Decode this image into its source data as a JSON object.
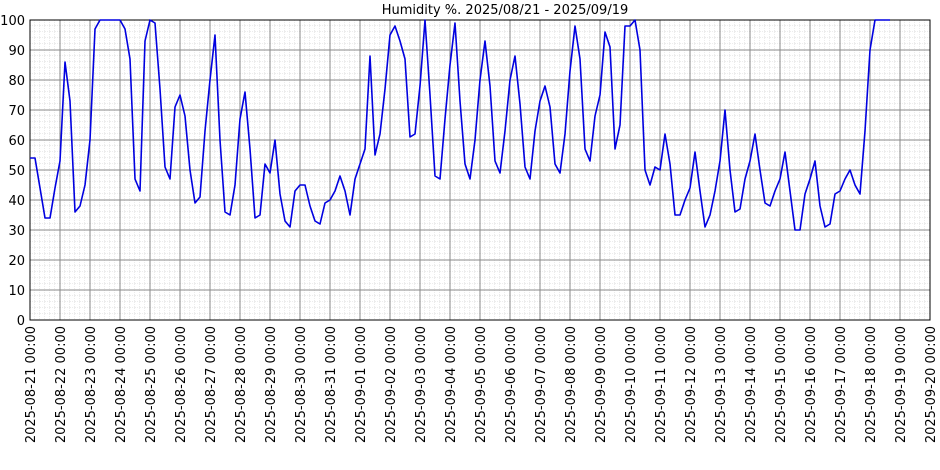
{
  "chart_data": {
    "type": "line",
    "title": "Humidity %. 2025/08/21 - 2025/09/19",
    "x": [
      "2025-08-21 00:00",
      "2025-08-21 04:00",
      "2025-08-21 08:00",
      "2025-08-21 12:00",
      "2025-08-21 16:00",
      "2025-08-21 20:00",
      "2025-08-22 00:00",
      "2025-08-22 04:00",
      "2025-08-22 08:00",
      "2025-08-22 12:00",
      "2025-08-22 16:00",
      "2025-08-22 20:00",
      "2025-08-23 00:00",
      "2025-08-23 04:00",
      "2025-08-23 08:00",
      "2025-08-23 12:00",
      "2025-08-23 16:00",
      "2025-08-23 20:00",
      "2025-08-24 00:00",
      "2025-08-24 04:00",
      "2025-08-24 08:00",
      "2025-08-24 12:00",
      "2025-08-24 16:00",
      "2025-08-24 20:00",
      "2025-08-25 00:00",
      "2025-08-25 04:00",
      "2025-08-25 08:00",
      "2025-08-25 12:00",
      "2025-08-25 16:00",
      "2025-08-25 20:00",
      "2025-08-26 00:00",
      "2025-08-26 04:00",
      "2025-08-26 08:00",
      "2025-08-26 12:00",
      "2025-08-26 16:00",
      "2025-08-26 20:00",
      "2025-08-27 00:00",
      "2025-08-27 04:00",
      "2025-08-27 08:00",
      "2025-08-27 12:00",
      "2025-08-27 16:00",
      "2025-08-27 20:00",
      "2025-08-28 00:00",
      "2025-08-28 04:00",
      "2025-08-28 08:00",
      "2025-08-28 12:00",
      "2025-08-28 16:00",
      "2025-08-28 20:00",
      "2025-08-29 00:00",
      "2025-08-29 04:00",
      "2025-08-29 08:00",
      "2025-08-29 12:00",
      "2025-08-29 16:00",
      "2025-08-29 20:00",
      "2025-08-30 00:00",
      "2025-08-30 04:00",
      "2025-08-30 08:00",
      "2025-08-30 12:00",
      "2025-08-30 16:00",
      "2025-08-30 20:00",
      "2025-08-31 00:00",
      "2025-08-31 04:00",
      "2025-08-31 08:00",
      "2025-08-31 12:00",
      "2025-08-31 16:00",
      "2025-08-31 20:00",
      "2025-09-01 00:00",
      "2025-09-01 04:00",
      "2025-09-01 08:00",
      "2025-09-01 12:00",
      "2025-09-01 16:00",
      "2025-09-01 20:00",
      "2025-09-02 00:00",
      "2025-09-02 04:00",
      "2025-09-02 08:00",
      "2025-09-02 12:00",
      "2025-09-02 16:00",
      "2025-09-02 20:00",
      "2025-09-03 00:00",
      "2025-09-03 04:00",
      "2025-09-03 08:00",
      "2025-09-03 12:00",
      "2025-09-03 16:00",
      "2025-09-03 20:00",
      "2025-09-04 00:00",
      "2025-09-04 04:00",
      "2025-09-04 08:00",
      "2025-09-04 12:00",
      "2025-09-04 16:00",
      "2025-09-04 20:00",
      "2025-09-05 00:00",
      "2025-09-05 04:00",
      "2025-09-05 08:00",
      "2025-09-05 12:00",
      "2025-09-05 16:00",
      "2025-09-05 20:00",
      "2025-09-06 00:00",
      "2025-09-06 04:00",
      "2025-09-06 08:00",
      "2025-09-06 12:00",
      "2025-09-06 16:00",
      "2025-09-06 20:00",
      "2025-09-07 00:00",
      "2025-09-07 04:00",
      "2025-09-07 08:00",
      "2025-09-07 12:00",
      "2025-09-07 16:00",
      "2025-09-07 20:00",
      "2025-09-08 00:00",
      "2025-09-08 04:00",
      "2025-09-08 08:00",
      "2025-09-08 12:00",
      "2025-09-08 16:00",
      "2025-09-08 20:00",
      "2025-09-09 00:00",
      "2025-09-09 04:00",
      "2025-09-09 08:00",
      "2025-09-09 12:00",
      "2025-09-09 16:00",
      "2025-09-09 20:00",
      "2025-09-10 00:00",
      "2025-09-10 04:00",
      "2025-09-10 08:00",
      "2025-09-10 12:00",
      "2025-09-10 16:00",
      "2025-09-10 20:00",
      "2025-09-11 00:00",
      "2025-09-11 04:00",
      "2025-09-11 08:00",
      "2025-09-11 12:00",
      "2025-09-11 16:00",
      "2025-09-11 20:00",
      "2025-09-12 00:00",
      "2025-09-12 04:00",
      "2025-09-12 08:00",
      "2025-09-12 12:00",
      "2025-09-12 16:00",
      "2025-09-12 20:00",
      "2025-09-13 00:00",
      "2025-09-13 04:00",
      "2025-09-13 08:00",
      "2025-09-13 12:00",
      "2025-09-13 16:00",
      "2025-09-13 20:00",
      "2025-09-14 00:00",
      "2025-09-14 04:00",
      "2025-09-14 08:00",
      "2025-09-14 12:00",
      "2025-09-14 16:00",
      "2025-09-14 20:00",
      "2025-09-15 00:00",
      "2025-09-15 04:00",
      "2025-09-15 08:00",
      "2025-09-15 12:00",
      "2025-09-15 16:00",
      "2025-09-15 20:00",
      "2025-09-16 00:00",
      "2025-09-16 04:00",
      "2025-09-16 08:00",
      "2025-09-16 12:00",
      "2025-09-16 16:00",
      "2025-09-16 20:00",
      "2025-09-17 00:00",
      "2025-09-17 04:00",
      "2025-09-17 08:00",
      "2025-09-17 12:00",
      "2025-09-17 16:00",
      "2025-09-17 20:00",
      "2025-09-18 00:00",
      "2025-09-18 04:00",
      "2025-09-18 08:00",
      "2025-09-18 12:00",
      "2025-09-18 16:00"
    ],
    "series": [
      {
        "name": "Humidity",
        "color": "#0000e0",
        "values": [
          54,
          54,
          44,
          34,
          34,
          44,
          53,
          86,
          73,
          36,
          38,
          45,
          60,
          97,
          100,
          100,
          100,
          100,
          100,
          97,
          87,
          47,
          43,
          93,
          100,
          99,
          77,
          51,
          47,
          71,
          75,
          68,
          50,
          39,
          41,
          63,
          80,
          95,
          60,
          36,
          35,
          45,
          67,
          76,
          57,
          34,
          35,
          52,
          49,
          60,
          42,
          33,
          31,
          43,
          45,
          45,
          38,
          33,
          32,
          39,
          40,
          43,
          48,
          43,
          35,
          47,
          52,
          57,
          88,
          55,
          62,
          77,
          95,
          98,
          93,
          87,
          61,
          62,
          78,
          100,
          75,
          48,
          47,
          67,
          85,
          99,
          73,
          52,
          47,
          60,
          80,
          93,
          78,
          53,
          49,
          63,
          80,
          88,
          72,
          51,
          47,
          63,
          73,
          78,
          71,
          52,
          49,
          62,
          83,
          98,
          87,
          57,
          53,
          68,
          75,
          96,
          91,
          57,
          65,
          98,
          98,
          100,
          90,
          50,
          45,
          51,
          50,
          62,
          52,
          35,
          35,
          40,
          44,
          56,
          43,
          31,
          35,
          43,
          53,
          70,
          50,
          36,
          37,
          47,
          53,
          62,
          50,
          39,
          38,
          43,
          47,
          56,
          43,
          30,
          30,
          42,
          47,
          53,
          38,
          31,
          32,
          42,
          43,
          47,
          50,
          45,
          42,
          63,
          90,
          100,
          100,
          100,
          100
        ]
      }
    ],
    "xlim": [
      "2025-08-21 00:00",
      "2025-09-20 00:00"
    ],
    "xticks": [
      "2025-08-21 00:00",
      "2025-08-22 00:00",
      "2025-08-23 00:00",
      "2025-08-24 00:00",
      "2025-08-25 00:00",
      "2025-08-26 00:00",
      "2025-08-27 00:00",
      "2025-08-28 00:00",
      "2025-08-29 00:00",
      "2025-08-30 00:00",
      "2025-08-31 00:00",
      "2025-09-01 00:00",
      "2025-09-02 00:00",
      "2025-09-03 00:00",
      "2025-09-04 00:00",
      "2025-09-05 00:00",
      "2025-09-06 00:00",
      "2025-09-07 00:00",
      "2025-09-08 00:00",
      "2025-09-09 00:00",
      "2025-09-10 00:00",
      "2025-09-11 00:00",
      "2025-09-12 00:00",
      "2025-09-13 00:00",
      "2025-09-14 00:00",
      "2025-09-15 00:00",
      "2025-09-16 00:00",
      "2025-09-17 00:00",
      "2025-09-18 00:00",
      "2025-09-19 00:00",
      "2025-09-20 00:00"
    ],
    "ylim": [
      0,
      100
    ],
    "yticks": [
      0,
      10,
      20,
      30,
      40,
      50,
      60,
      70,
      80,
      90,
      100
    ],
    "grid": true
  }
}
